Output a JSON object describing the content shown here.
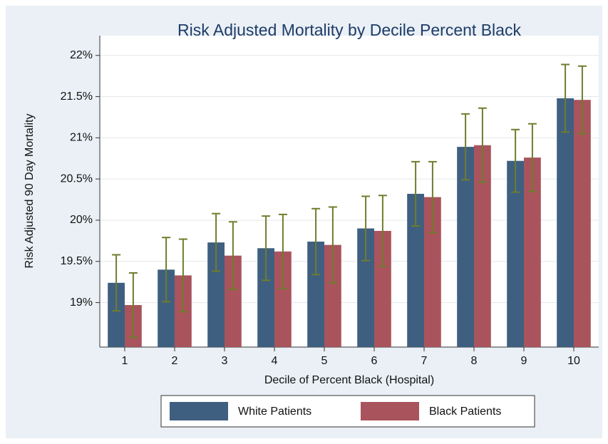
{
  "chart_data": {
    "type": "bar",
    "title": "Risk Adjusted Mortality by Decile Percent Black",
    "xlabel": "Decile of Percent Black (Hospital)",
    "ylabel": "Risk Adjusted 90 Day Mortality",
    "categories": [
      "1",
      "2",
      "3",
      "4",
      "5",
      "6",
      "7",
      "8",
      "9",
      "10"
    ],
    "series": [
      {
        "name": "White Patients",
        "color": "#3f5f80",
        "values": [
          19.24,
          19.4,
          19.73,
          19.66,
          19.74,
          19.9,
          20.32,
          20.89,
          20.72,
          21.48
        ],
        "errors": [
          0.34,
          0.39,
          0.35,
          0.39,
          0.4,
          0.39,
          0.39,
          0.4,
          0.38,
          0.41
        ]
      },
      {
        "name": "Black Patients",
        "color": "#a9545c",
        "values": [
          18.97,
          19.33,
          19.57,
          19.62,
          19.7,
          19.87,
          20.28,
          20.91,
          20.76,
          21.46
        ],
        "errors": [
          0.39,
          0.44,
          0.41,
          0.45,
          0.46,
          0.43,
          0.43,
          0.45,
          0.41,
          0.41
        ]
      }
    ],
    "error_color": "#6e7d2c",
    "ylim": [
      18.46,
      22.24
    ],
    "yticks": [
      {
        "value": 19,
        "label": "19%"
      },
      {
        "value": 19.5,
        "label": "19.5%"
      },
      {
        "value": 20,
        "label": "20%"
      },
      {
        "value": 20.5,
        "label": "20.5%"
      },
      {
        "value": 21,
        "label": "21%"
      },
      {
        "value": 21.5,
        "label": "21.5%"
      },
      {
        "value": 22,
        "label": "22%"
      }
    ],
    "grid": true,
    "legend": "bottom"
  }
}
